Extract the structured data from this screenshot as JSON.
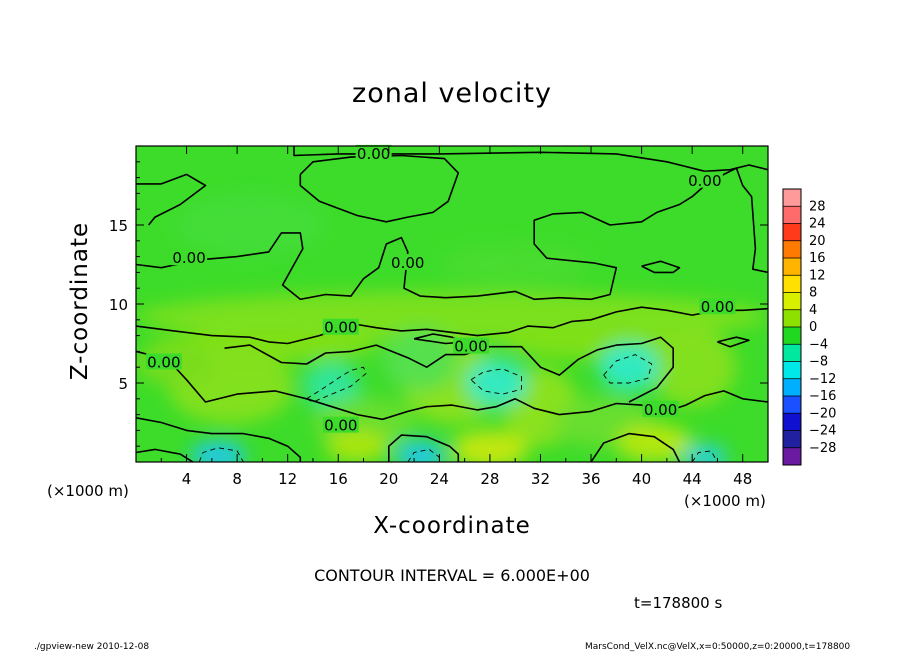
{
  "chart_data": {
    "type": "heatmap",
    "title": "zonal velocity",
    "xlabel": "X-coordinate",
    "ylabel": "Z-coordinate",
    "x_unit_left": "(×1000 m)",
    "x_unit_right": "(×1000 m)",
    "xlim": [
      0,
      50
    ],
    "ylim": [
      0,
      20
    ],
    "x_ticks": [
      4,
      8,
      12,
      16,
      20,
      24,
      28,
      32,
      36,
      40,
      44,
      48
    ],
    "y_ticks": [
      5,
      10,
      15
    ],
    "contour_interval_text": "CONTOUR INTERVAL = 6.000E+00",
    "time_text": "t=178800 s",
    "contour_labels": [
      {
        "text": "0.00",
        "x": 18.8,
        "z": 19.5
      },
      {
        "text": "0.00",
        "x": 45.0,
        "z": 17.8
      },
      {
        "text": "0.00",
        "x": 4.2,
        "z": 12.9
      },
      {
        "text": "0.00",
        "x": 21.5,
        "z": 12.6
      },
      {
        "text": "0.00",
        "x": 46.0,
        "z": 9.8
      },
      {
        "text": "0.00",
        "x": 16.2,
        "z": 8.5
      },
      {
        "text": "0.00",
        "x": 26.5,
        "z": 7.3
      },
      {
        "text": "0.00",
        "x": 2.2,
        "z": 6.3
      },
      {
        "text": "0.00",
        "x": 41.5,
        "z": 3.3
      },
      {
        "text": "0.00",
        "x": 16.2,
        "z": 2.3
      }
    ],
    "colorbar": {
      "levels": [
        28,
        24,
        20,
        16,
        12,
        8,
        4,
        0,
        -4,
        -8,
        -12,
        -16,
        -20,
        -24,
        -28
      ],
      "colors": [
        "#ff9a9a",
        "#ff6a6a",
        "#ff3a1a",
        "#ff7a00",
        "#ffb400",
        "#ffe000",
        "#d8f000",
        "#8ee000",
        "#20d820",
        "#00e8a0",
        "#00e8e8",
        "#00b0ff",
        "#1a50ff",
        "#1010d0",
        "#2020a0",
        "#6a1aa0"
      ]
    },
    "background_color": "#3ddc2a"
  },
  "footer": {
    "left": "./gpview-new   2010-12-08",
    "right": "MarsCond_VelX.nc@VelX,x=0:50000,z=0:20000,t=178800"
  }
}
